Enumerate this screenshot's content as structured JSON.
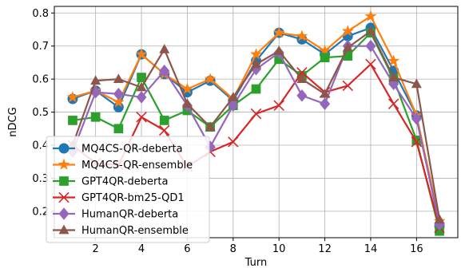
{
  "chart_data": {
    "type": "line",
    "xlabel": "Turn",
    "ylabel": "nDCG",
    "xlim": [
      0.2,
      17.8
    ],
    "ylim": [
      0.12,
      0.82
    ],
    "xticks": [
      2,
      4,
      6,
      8,
      10,
      12,
      14,
      16
    ],
    "yticks": [
      0.2,
      0.3,
      0.4,
      0.5,
      0.6,
      0.7,
      0.8
    ],
    "ytick_labels": [
      "0.2",
      "0.3",
      "0.4",
      "0.5",
      "0.6",
      "0.7",
      "0.8"
    ],
    "grid": true,
    "legend_position": "lower-left",
    "x": [
      1,
      2,
      3,
      4,
      5,
      6,
      7,
      8,
      9,
      10,
      11,
      12,
      13,
      14,
      15,
      16,
      17
    ],
    "series": [
      {
        "name": "MQ4CS-QR-deberta",
        "color": "#1f77b4",
        "marker": "circle",
        "values": [
          0.54,
          0.565,
          0.515,
          0.675,
          0.615,
          0.56,
          0.595,
          0.535,
          0.655,
          0.74,
          0.72,
          0.675,
          0.73,
          0.755,
          0.625,
          0.49,
          0.155
        ]
      },
      {
        "name": "MQ4CS-QR-ensemble",
        "color": "#ff7f0e",
        "marker": "star",
        "values": [
          0.545,
          0.565,
          0.53,
          0.675,
          0.615,
          0.57,
          0.6,
          0.54,
          0.675,
          0.74,
          0.73,
          0.685,
          0.745,
          0.79,
          0.655,
          0.49,
          0.17
        ]
      },
      {
        "name": "GPT4QR-deberta",
        "color": "#2ca02c",
        "marker": "square",
        "values": [
          0.475,
          0.485,
          0.45,
          0.605,
          0.475,
          0.505,
          0.455,
          0.52,
          0.57,
          0.66,
          0.61,
          0.665,
          0.67,
          0.74,
          0.6,
          0.415,
          0.14
        ]
      },
      {
        "name": "GPT4QR-bm25-QD1",
        "color": "#d62728",
        "marker": "x",
        "values": [
          0.4,
          0.345,
          0.34,
          0.485,
          0.445,
          0.335,
          0.38,
          0.41,
          0.495,
          0.52,
          0.62,
          0.56,
          0.58,
          0.645,
          0.525,
          0.41,
          0.15
        ]
      },
      {
        "name": "HumanQR-deberta",
        "color": "#9467bd",
        "marker": "diamond",
        "values": [
          0.38,
          0.56,
          0.555,
          0.545,
          0.625,
          0.52,
          0.395,
          0.52,
          0.63,
          0.68,
          0.55,
          0.525,
          0.7,
          0.7,
          0.585,
          0.48,
          0.16
        ]
      },
      {
        "name": "HumanQR-ensemble",
        "color": "#8c564b",
        "marker": "triangle",
        "values": [
          0.4,
          0.595,
          0.6,
          0.575,
          0.69,
          0.525,
          0.455,
          0.545,
          0.645,
          0.685,
          0.6,
          0.555,
          0.695,
          0.745,
          0.605,
          0.585,
          0.175
        ]
      }
    ]
  }
}
